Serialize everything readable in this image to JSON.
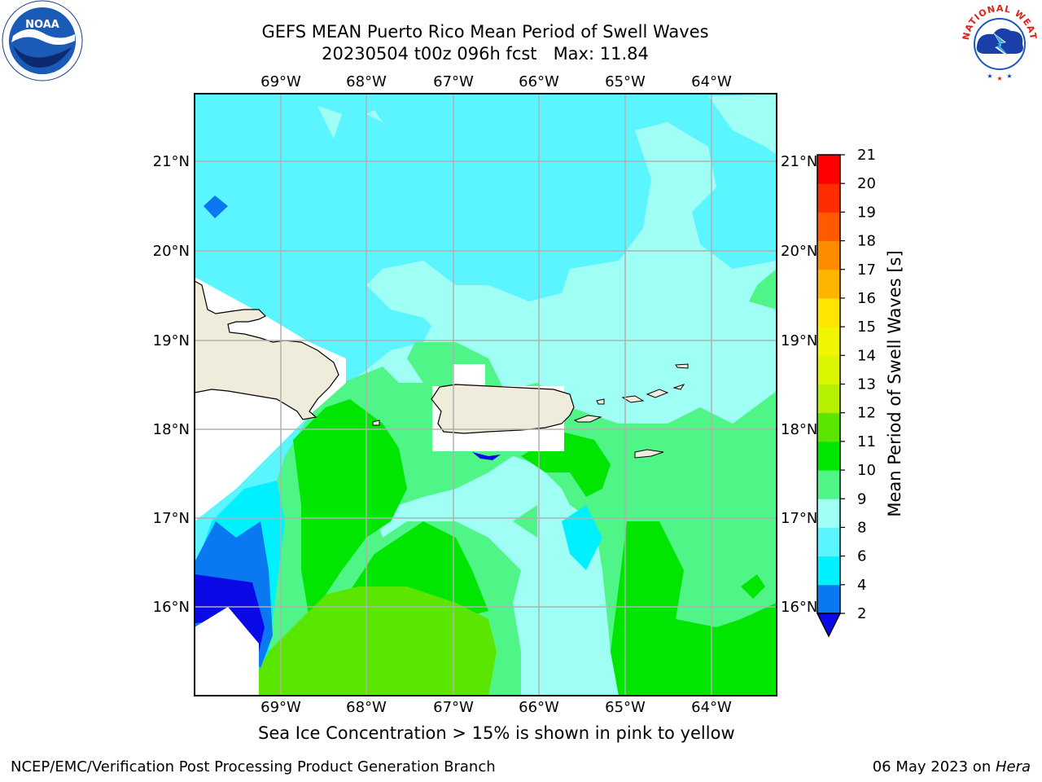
{
  "header": {
    "title_line1": "GEFS MEAN Puerto Rico Mean Period of Swell Waves",
    "title_line2": "20230504 t00z 096h fcst   Max: 11.84"
  },
  "map": {
    "lon_labels": [
      "69°W",
      "68°W",
      "67°W",
      "66°W",
      "65°W",
      "64°W"
    ],
    "lat_labels": [
      "21°N",
      "20°N",
      "19°N",
      "18°N",
      "17°N",
      "16°N"
    ],
    "land_color": "#efecdc",
    "grid_color": "#b0b0b0"
  },
  "colorbar": {
    "label": "Mean Period of Swell Waves [s]",
    "ticks": [
      "2",
      "4",
      "6",
      "8",
      "9",
      "10",
      "11",
      "12",
      "13",
      "14",
      "15",
      "16",
      "17",
      "18",
      "19",
      "20",
      "21"
    ],
    "colors": [
      "#0a0ae6",
      "#0a78f0",
      "#00f0ff",
      "#5af5ff",
      "#a0fff5",
      "#50f587",
      "#00e600",
      "#5ae600",
      "#b4f000",
      "#dcf500",
      "#f0f500",
      "#ffe600",
      "#ffb400",
      "#ff8c00",
      "#ff5a00",
      "#ff2d00",
      "#ff0000"
    ]
  },
  "caption": "Sea Ice Concentration > 15% is shown in pink to yellow",
  "footer": {
    "left": "NCEP/EMC/Verification Post Processing Product Generation Branch",
    "date": "06 May 2023 on ",
    "machine": "Hera"
  },
  "logos": {
    "noaa": "NOAA",
    "nws_text": "NATIONAL WEATHER SERVICE"
  }
}
